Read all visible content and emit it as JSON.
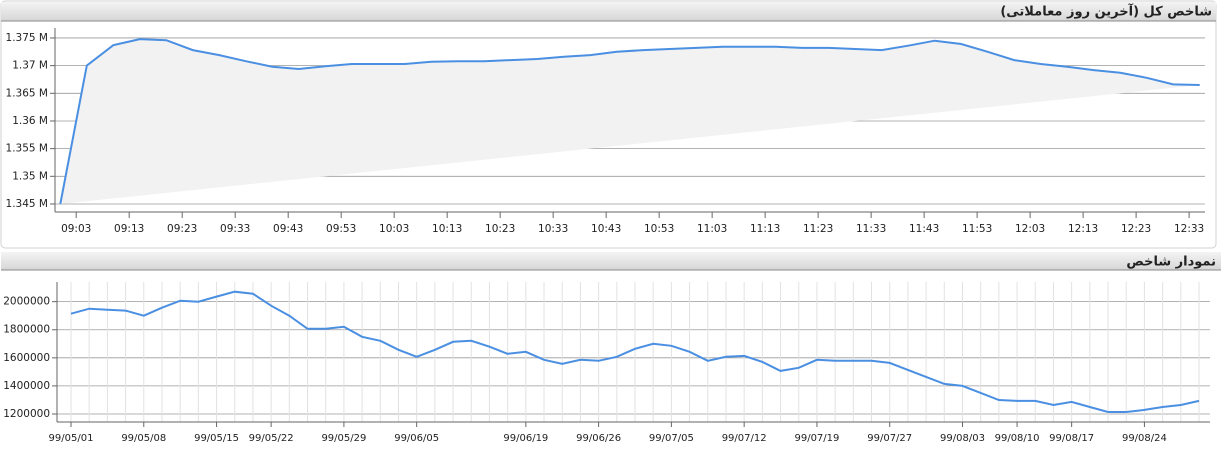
{
  "chart_data": [
    {
      "type": "line",
      "title": "شاخص کل (آخرین روز معاملاتی)",
      "color": "#4a8fe2",
      "area": true,
      "grid": true,
      "x": [
        540,
        545,
        550,
        555,
        560,
        565,
        570,
        575,
        580,
        585,
        590,
        595,
        600,
        605,
        610,
        615,
        620,
        625,
        630,
        635,
        640,
        645,
        650,
        655,
        660,
        665,
        670,
        675,
        680,
        685,
        690,
        695,
        700,
        705,
        710,
        715,
        720,
        725,
        730,
        735,
        740,
        745,
        750,
        755
      ],
      "values": [
        1345000,
        1370000,
        1373700,
        1374800,
        1374600,
        1372800,
        1371900,
        1370800,
        1369800,
        1369400,
        1369900,
        1370300,
        1370300,
        1370300,
        1370700,
        1370800,
        1370800,
        1371000,
        1371200,
        1371600,
        1371900,
        1372500,
        1372800,
        1373000,
        1373200,
        1373400,
        1373400,
        1373400,
        1373200,
        1373200,
        1373000,
        1372800,
        1373600,
        1374500,
        1373900,
        1372500,
        1371000,
        1370300,
        1369800,
        1369200,
        1368700,
        1367800,
        1366600,
        1366500
      ],
      "xlim": [
        539,
        756
      ],
      "xticks": [
        {
          "value": 543,
          "label": "09:03"
        },
        {
          "value": 553,
          "label": "09:13"
        },
        {
          "value": 563,
          "label": "09:23"
        },
        {
          "value": 573,
          "label": "09:33"
        },
        {
          "value": 583,
          "label": "09:43"
        },
        {
          "value": 593,
          "label": "09:53"
        },
        {
          "value": 603,
          "label": "10:03"
        },
        {
          "value": 613,
          "label": "10:13"
        },
        {
          "value": 623,
          "label": "10:23"
        },
        {
          "value": 633,
          "label": "10:33"
        },
        {
          "value": 643,
          "label": "10:43"
        },
        {
          "value": 653,
          "label": "10:53"
        },
        {
          "value": 663,
          "label": "11:03"
        },
        {
          "value": 673,
          "label": "11:13"
        },
        {
          "value": 683,
          "label": "11:23"
        },
        {
          "value": 693,
          "label": "11:33"
        },
        {
          "value": 703,
          "label": "11:43"
        },
        {
          "value": 713,
          "label": "11:53"
        },
        {
          "value": 723,
          "label": "12:03"
        },
        {
          "value": 733,
          "label": "12:13"
        },
        {
          "value": 743,
          "label": "12:23"
        },
        {
          "value": 753,
          "label": "12:33"
        }
      ],
      "ylim": [
        1343550,
        1376800
      ],
      "yticks": [
        {
          "value": 1345000,
          "label": "1.345 M"
        },
        {
          "value": 1350000,
          "label": "1.35 M"
        },
        {
          "value": 1355000,
          "label": "1.355 M"
        },
        {
          "value": 1360000,
          "label": "1.36 M"
        },
        {
          "value": 1365000,
          "label": "1.365 M"
        },
        {
          "value": 1370000,
          "label": "1.37 M"
        },
        {
          "value": 1375000,
          "label": "1.375 M"
        }
      ]
    },
    {
      "type": "line",
      "title": "نمودار شاخص",
      "color": "#4a8fe2",
      "area": false,
      "grid": true,
      "x_grid": true,
      "categories": [
        "99/05/01",
        null,
        null,
        null,
        "99/05/08",
        null,
        null,
        null,
        "99/05/15",
        null,
        null,
        "99/05/22",
        null,
        null,
        null,
        "99/05/29",
        null,
        null,
        null,
        "99/06/05",
        null,
        null,
        null,
        null,
        null,
        "99/06/19",
        null,
        null,
        null,
        "99/06/26",
        null,
        null,
        null,
        "99/07/05",
        null,
        null,
        null,
        "99/07/12",
        null,
        null,
        null,
        "99/07/19",
        null,
        null,
        null,
        "99/07/27",
        null,
        null,
        null,
        "99/08/03",
        null,
        null,
        "99/08/10",
        null,
        null,
        "99/08/17",
        null,
        null,
        null,
        "99/08/24",
        null,
        null,
        null
      ],
      "values": [
        1914000,
        1950000,
        1943000,
        1936000,
        1900000,
        1957000,
        2007000,
        2000000,
        2036000,
        2071000,
        2057000,
        1971000,
        1900000,
        1807000,
        1807000,
        1821000,
        1750000,
        1721000,
        1657000,
        1607000,
        1657000,
        1714000,
        1721000,
        1679000,
        1629000,
        1643000,
        1586000,
        1557000,
        1586000,
        1579000,
        1607000,
        1664000,
        1700000,
        1686000,
        1643000,
        1579000,
        1607000,
        1614000,
        1571000,
        1507000,
        1529000,
        1586000,
        1579000,
        1579000,
        1579000,
        1564000,
        1514000,
        1464000,
        1414000,
        1400000,
        1350000,
        1300000,
        1293000,
        1293000,
        1264000,
        1286000,
        1250000,
        1214000,
        1214000,
        1229000,
        1250000,
        1264000,
        1293000
      ],
      "ylim": [
        1143000,
        2140000
      ],
      "yticks": [
        1200000,
        1400000,
        1600000,
        1800000,
        2000000
      ]
    }
  ]
}
